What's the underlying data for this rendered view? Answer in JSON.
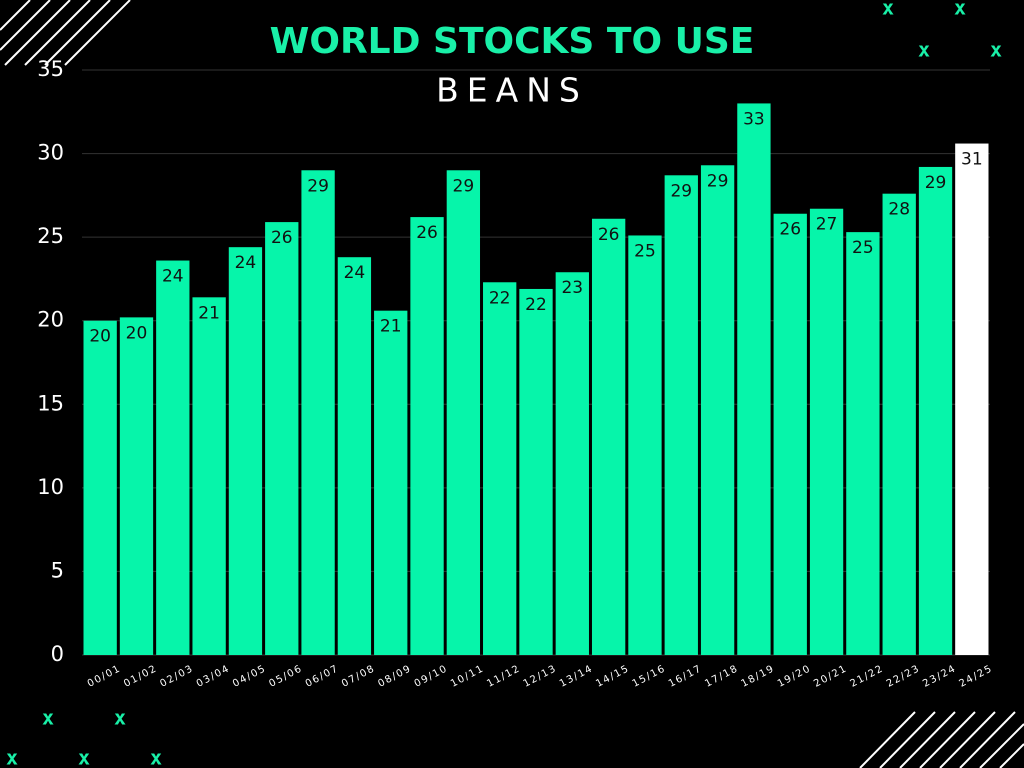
{
  "chart_data": {
    "type": "bar",
    "title": "WORLD STOCKS TO USE",
    "subtitle": "BEANS",
    "categories": [
      "00/01",
      "01/02",
      "02/03",
      "03/04",
      "04/05",
      "05/06",
      "06/07",
      "07/08",
      "08/09",
      "09/10",
      "10/11",
      "11/12",
      "12/13",
      "13/14",
      "14/15",
      "15/16",
      "16/17",
      "17/18",
      "18/19",
      "19/20",
      "20/21",
      "21/22",
      "22/23",
      "23/24",
      "24/25"
    ],
    "values": [
      20.0,
      20.2,
      23.6,
      21.4,
      24.4,
      25.9,
      29.0,
      23.8,
      20.6,
      26.2,
      29.0,
      22.3,
      21.9,
      22.9,
      26.1,
      25.1,
      28.7,
      29.3,
      33.0,
      26.4,
      26.7,
      25.3,
      27.6,
      29.2,
      30.6
    ],
    "value_labels": [
      "20",
      "20",
      "24",
      "21",
      "24",
      "26",
      "29",
      "24",
      "21",
      "26",
      "29",
      "22",
      "22",
      "23",
      "26",
      "25",
      "29",
      "29",
      "33",
      "26",
      "27",
      "25",
      "28",
      "29",
      "31"
    ],
    "colors": [
      "#06f5aa",
      "#06f5aa",
      "#06f5aa",
      "#06f5aa",
      "#06f5aa",
      "#06f5aa",
      "#06f5aa",
      "#06f5aa",
      "#06f5aa",
      "#06f5aa",
      "#06f5aa",
      "#06f5aa",
      "#06f5aa",
      "#06f5aa",
      "#06f5aa",
      "#06f5aa",
      "#06f5aa",
      "#06f5aa",
      "#06f5aa",
      "#06f5aa",
      "#06f5aa",
      "#06f5aa",
      "#06f5aa",
      "#06f5aa",
      "#ffffff"
    ],
    "ylim": [
      0,
      35
    ],
    "yticks": [
      0,
      5,
      10,
      15,
      20,
      25,
      30,
      35
    ],
    "grid": true
  }
}
